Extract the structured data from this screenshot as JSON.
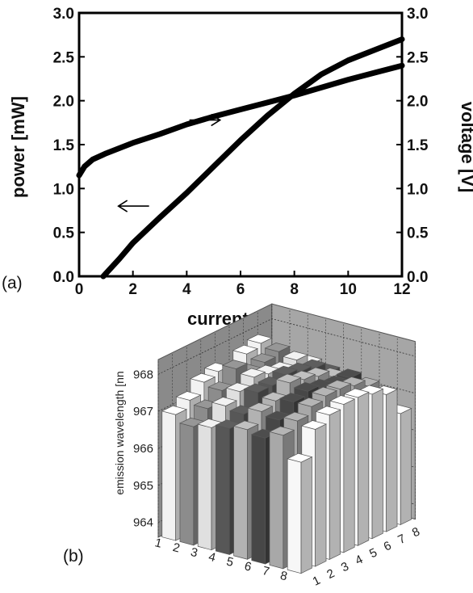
{
  "chart_data": [
    {
      "type": "line",
      "panel_label": "(a)",
      "xlabel": "current [mA]",
      "ylabel_left": "power [mW]",
      "ylabel_right": "voltage [V]",
      "xlim": [
        0,
        12
      ],
      "ylim_left": [
        0,
        3.0
      ],
      "ylim_right": [
        0,
        3.0
      ],
      "x_ticks": [
        "0",
        "2",
        "4",
        "6",
        "8",
        "10",
        "12"
      ],
      "y_ticks_left": [
        "0.0",
        "0.5",
        "1.0",
        "1.5",
        "2.0",
        "2.5",
        "3.0"
      ],
      "y_ticks_right": [
        "0.0",
        "0.5",
        "1.0",
        "1.5",
        "2.0",
        "2.5",
        "3.0"
      ],
      "grid": false,
      "series": [
        {
          "axis": "left",
          "x": [
            0.9,
            1.5,
            2,
            3,
            4,
            5,
            6,
            7,
            8,
            9,
            10,
            11,
            12
          ],
          "values": [
            0.0,
            0.2,
            0.38,
            0.67,
            0.95,
            1.25,
            1.55,
            1.83,
            2.08,
            2.3,
            2.46,
            2.58,
            2.7
          ]
        },
        {
          "axis": "right",
          "x": [
            0,
            0.2,
            0.5,
            1,
            2,
            3,
            4,
            5,
            6,
            7,
            8,
            9,
            10,
            11,
            12
          ],
          "values": [
            1.15,
            1.25,
            1.33,
            1.4,
            1.52,
            1.62,
            1.73,
            1.82,
            1.9,
            1.98,
            2.06,
            2.15,
            2.24,
            2.32,
            2.4
          ]
        }
      ],
      "arrows": [
        {
          "x": 4.1,
          "y": 1.78,
          "direction": "right"
        },
        {
          "x": 2.6,
          "y": 0.8,
          "direction": "left"
        }
      ]
    },
    {
      "type": "bar3d",
      "panel_label": "(b)",
      "zlabel": "emission wavelength [nn",
      "zlim": [
        963.6,
        968.4
      ],
      "z_ticks": [
        "964",
        "965",
        "966",
        "967",
        "968"
      ],
      "row_ticks": [
        "1",
        "2",
        "3",
        "4",
        "5",
        "6",
        "7",
        "8"
      ],
      "col_ticks": [
        "1",
        "2",
        "3",
        "4",
        "5",
        "6",
        "7",
        "8"
      ],
      "grid": true,
      "rows": [
        {
          "name": "1",
          "values": [
            967.0,
            967.2,
            967.5,
            967.6,
            967.4,
            967.7,
            967.8,
            967.1
          ],
          "color": "#f2f2f2"
        },
        {
          "name": "2",
          "values": [
            966.8,
            967.1,
            967.4,
            967.8,
            967.5,
            967.6,
            967.7,
            967.2
          ],
          "color": "#8c8c8c"
        },
        {
          "name": "3",
          "values": [
            966.9,
            967.3,
            967.5,
            967.7,
            967.6,
            967.5,
            967.6,
            967.3
          ],
          "color": "#e0e0e0"
        },
        {
          "name": "4",
          "values": [
            967.0,
            967.2,
            967.6,
            967.6,
            967.7,
            967.6,
            967.5,
            967.2
          ],
          "color": "#575757"
        },
        {
          "name": "5",
          "values": [
            967.1,
            967.4,
            967.5,
            967.8,
            967.7,
            967.6,
            967.4,
            967.1
          ],
          "color": "#b2b2b2"
        },
        {
          "name": "6",
          "values": [
            967.0,
            967.3,
            967.6,
            967.7,
            967.6,
            967.5,
            967.5,
            967.0
          ],
          "color": "#474747"
        },
        {
          "name": "7",
          "values": [
            967.2,
            967.4,
            967.6,
            967.7,
            967.7,
            967.6,
            967.4,
            967.0
          ],
          "color": "#a8a8a8"
        },
        {
          "name": "8",
          "values": [
            966.6,
            967.3,
            967.5,
            967.6,
            967.6,
            967.5,
            967.3,
            966.6
          ],
          "color": "#f7f7f7"
        }
      ]
    }
  ]
}
